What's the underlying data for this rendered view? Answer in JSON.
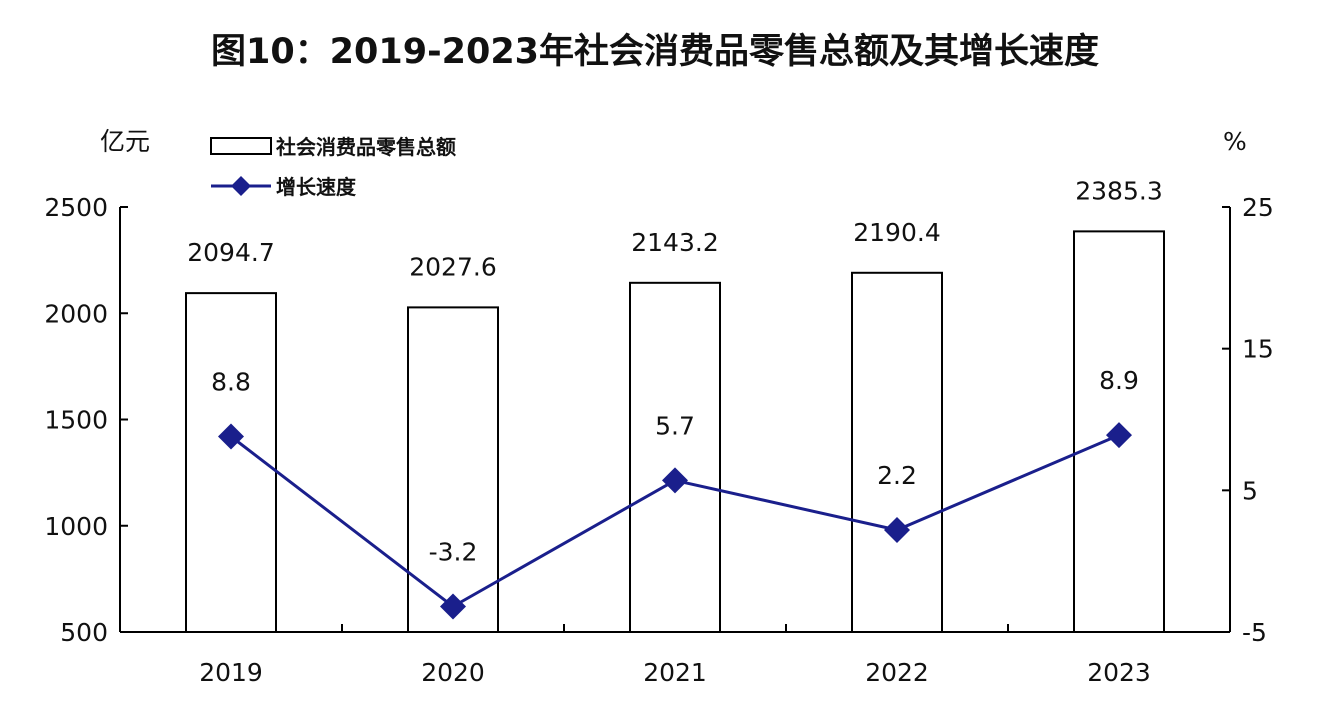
{
  "chart_data": {
    "type": "bar",
    "title": "图10：2019-2023年社会消费品零售总额及其增长速度",
    "categories": [
      "2019",
      "2020",
      "2021",
      "2022",
      "2023"
    ],
    "series": [
      {
        "name": "社会消费品零售总额",
        "type": "bar",
        "axis": "left",
        "values": [
          2094.7,
          2027.6,
          2143.2,
          2190.4,
          2385.3
        ],
        "labels": [
          "2094.7",
          "2027.6",
          "2143.2",
          "2190.4",
          "2385.3"
        ],
        "fill": "#ffffff",
        "stroke": "#000000"
      },
      {
        "name": "增长速度",
        "type": "line",
        "axis": "right",
        "values": [
          8.8,
          -3.2,
          5.7,
          2.2,
          8.9
        ],
        "labels": [
          "8.8",
          "-3.2",
          "5.7",
          "2.2",
          "8.9"
        ],
        "color": "#1a1f8c",
        "marker": "diamond"
      }
    ],
    "y_left": {
      "unit": "亿元",
      "ylim": [
        500,
        2500
      ],
      "ticks": [
        "2500",
        "2000",
        "1500",
        "1000",
        "500"
      ]
    },
    "y_right": {
      "unit": "%",
      "ylim": [
        -5,
        25
      ],
      "ticks": [
        "25",
        "15",
        "5",
        "-5"
      ]
    },
    "grid": false,
    "legend": "top-left"
  }
}
